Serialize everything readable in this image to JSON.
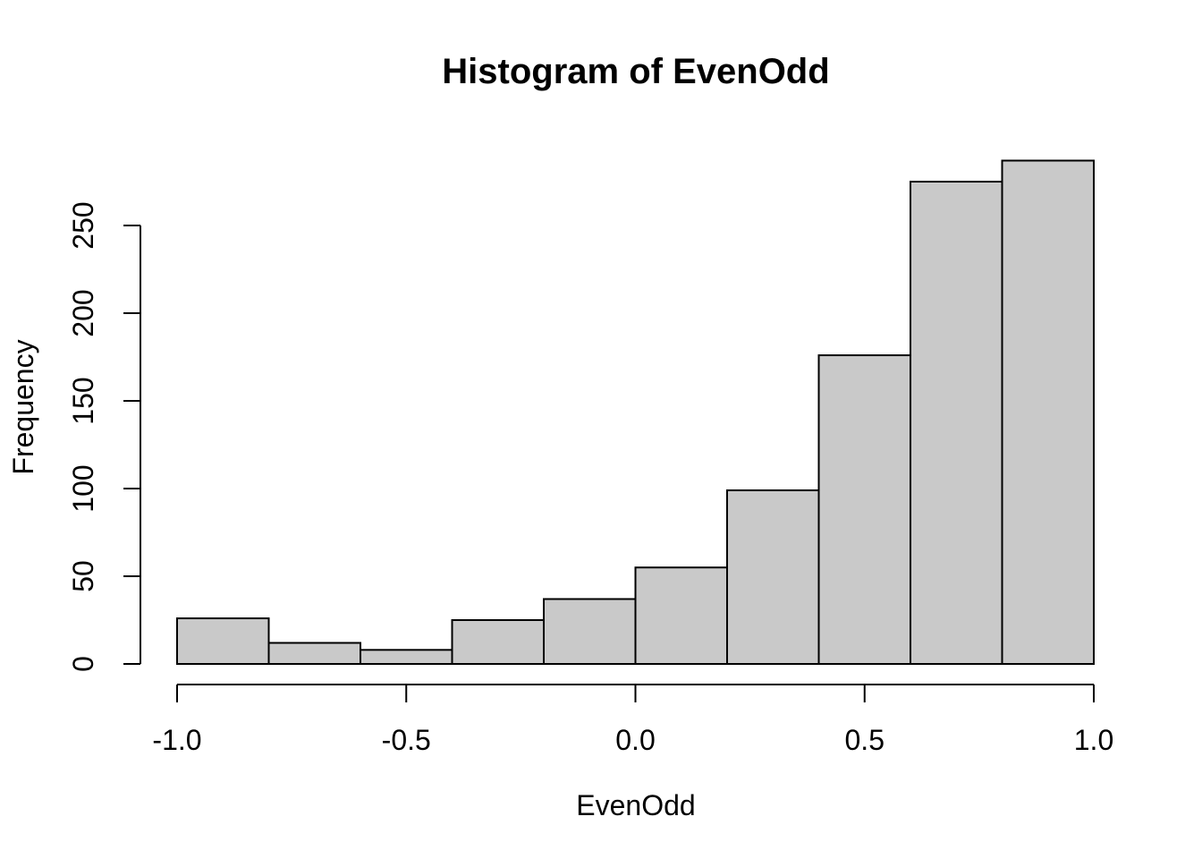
{
  "page": {
    "background": "#FFFFFF"
  },
  "chart_data": {
    "type": "bar",
    "subtype": "histogram",
    "title": "Histogram of EvenOdd",
    "xlabel": "EvenOdd",
    "ylabel": "Frequency",
    "bin_edges": [
      -1.0,
      -0.8,
      -0.6,
      -0.4,
      -0.2,
      0.0,
      0.2,
      0.4,
      0.6,
      0.8,
      1.0
    ],
    "values": [
      26,
      12,
      8,
      25,
      37,
      55,
      99,
      176,
      275,
      287
    ],
    "x_tick_values": [
      -1.0,
      -0.5,
      0.0,
      0.5,
      1.0
    ],
    "x_tick_labels": [
      "-1.0",
      "-0.5",
      "0.0",
      "0.5",
      "1.0"
    ],
    "y_tick_values": [
      0,
      50,
      100,
      150,
      200,
      250
    ],
    "y_tick_labels": [
      "0",
      "50",
      "100",
      "150",
      "200",
      "250"
    ],
    "xlim": [
      -1.0,
      1.0
    ],
    "ylim": [
      0,
      290
    ],
    "grid": false,
    "legend": null,
    "bar_fill": "#C9C9C9",
    "bar_border": "#000000",
    "axis_color": "#000000",
    "text_color": "#000000"
  }
}
